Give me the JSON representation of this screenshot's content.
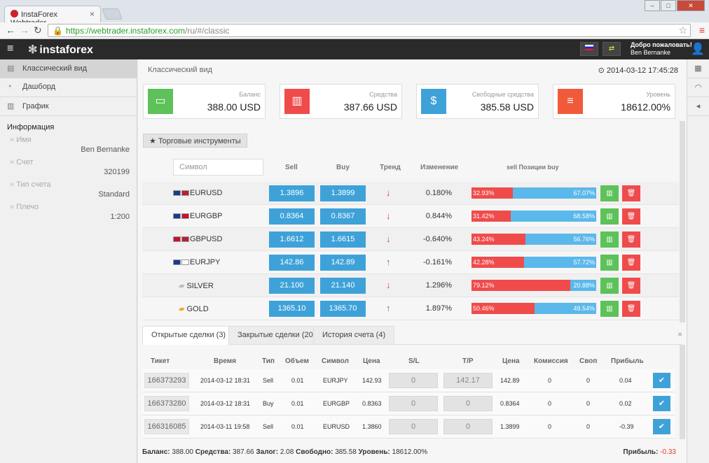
{
  "browser": {
    "tab_title": "InstaForex Webtrader",
    "url_host": "https://webtrader.instaforex.com",
    "url_path": "/ru/#/classic"
  },
  "topbar": {
    "logo": "instaforex",
    "welcome": "Добро пожаловать!",
    "user": "Ben Bernanke"
  },
  "sidebar": {
    "items": [
      {
        "label": "Классический вид",
        "icon": "table-icon"
      },
      {
        "label": "Дашборд",
        "icon": "dashboard-icon"
      },
      {
        "label": "График",
        "icon": "chart-icon"
      }
    ],
    "info_title": "Информация",
    "info": [
      {
        "k": "Имя",
        "v": "Ben Bernanke"
      },
      {
        "k": "Счет",
        "v": "320199"
      },
      {
        "k": "Тип счета",
        "v": "Standard"
      },
      {
        "k": "Плечо",
        "v": "1:200"
      }
    ]
  },
  "main": {
    "crumb": "Классический вид",
    "datetime": "2014-03-12 17:45:28",
    "cards": [
      {
        "label": "Баланс",
        "value": "388.00 USD",
        "color": "#5cc259"
      },
      {
        "label": "Средства",
        "value": "387.66 USD",
        "color": "#f04b4b"
      },
      {
        "label": "Свободные средства",
        "value": "385.58 USD",
        "color": "#3ea2d9"
      },
      {
        "label": "Уровень",
        "value": "18612.00%",
        "color": "#f05a3a"
      }
    ],
    "instruments_btn": "Торговые инструменты",
    "filter_placeholder": "Символ",
    "cols": {
      "sell": "Sell",
      "buy": "Buy",
      "trend": "Тренд",
      "change": "Изменение",
      "pos_sell": "sell",
      "pos": "Позиции",
      "pos_buy": "buy"
    },
    "instruments": [
      {
        "symbol": "EURUSD",
        "sell": "1.3896",
        "buy": "1.3899",
        "trend": "down",
        "change": "0.180%",
        "s": "32.93%",
        "b": "67.07%",
        "sf": 0.3293
      },
      {
        "symbol": "EURGBP",
        "sell": "0.8364",
        "buy": "0.8367",
        "trend": "down",
        "change": "0.844%",
        "s": "31.42%",
        "b": "68.58%",
        "sf": 0.3142
      },
      {
        "symbol": "GBPUSD",
        "sell": "1.6612",
        "buy": "1.6615",
        "trend": "down",
        "change": "-0.640%",
        "s": "43.24%",
        "b": "56.76%",
        "sf": 0.4324
      },
      {
        "symbol": "EURJPY",
        "sell": "142.86",
        "buy": "142.89",
        "trend": "up",
        "change": "-0.161%",
        "s": "42.28%",
        "b": "57.72%",
        "sf": 0.4228
      },
      {
        "symbol": "SILVER",
        "sell": "21.100",
        "buy": "21.140",
        "trend": "down",
        "change": "1.296%",
        "s": "79.12%",
        "b": "20.88%",
        "sf": 0.7912
      },
      {
        "symbol": "GOLD",
        "sell": "1365.10",
        "buy": "1365.70",
        "trend": "up",
        "change": "1.897%",
        "s": "50.46%",
        "b": "49.54%",
        "sf": 0.5046
      }
    ],
    "tabs": [
      "Открытые сделки (3)",
      "Закрытые сделки (20)",
      "История счета (4)"
    ],
    "table_headers": [
      "Тикет",
      "Время",
      "Тип",
      "Объем",
      "Символ",
      "Цена",
      "S/L",
      "T/P",
      "Цена",
      "Комиссия",
      "Своп",
      "Прибыль"
    ],
    "trades": [
      {
        "ticket": "166373293",
        "time": "2014-03-12 18:31",
        "type": "Sell",
        "vol": "0.01",
        "sym": "EURJPY",
        "price": "142.93",
        "sl": "0",
        "tp": "142.17",
        "cur": "142.89",
        "com": "0",
        "swap": "0",
        "profit": "0.04"
      },
      {
        "ticket": "166373280",
        "time": "2014-03-12 18:31",
        "type": "Buy",
        "vol": "0.01",
        "sym": "EURGBP",
        "price": "0.8363",
        "sl": "0",
        "tp": "0",
        "cur": "0.8364",
        "com": "0",
        "swap": "0",
        "profit": "0.02"
      },
      {
        "ticket": "166316085",
        "time": "2014-03-11 19:58",
        "type": "Sell",
        "vol": "0.01",
        "sym": "EURUSD",
        "price": "1.3860",
        "sl": "0",
        "tp": "0",
        "cur": "1.3899",
        "com": "0",
        "swap": "0",
        "profit": "-0.39"
      }
    ],
    "footer": {
      "bal_l": "Баланс:",
      "bal": "388.00",
      "eq_l": "Средства:",
      "eq": "387.66",
      "mar_l": "Залог:",
      "mar": "2.08",
      "free_l": "Свободно:",
      "free": "385.58",
      "lvl_l": "Уровень:",
      "lvl": "18612.00%",
      "profit_l": "Прибыль:",
      "profit": "-0.33"
    }
  }
}
